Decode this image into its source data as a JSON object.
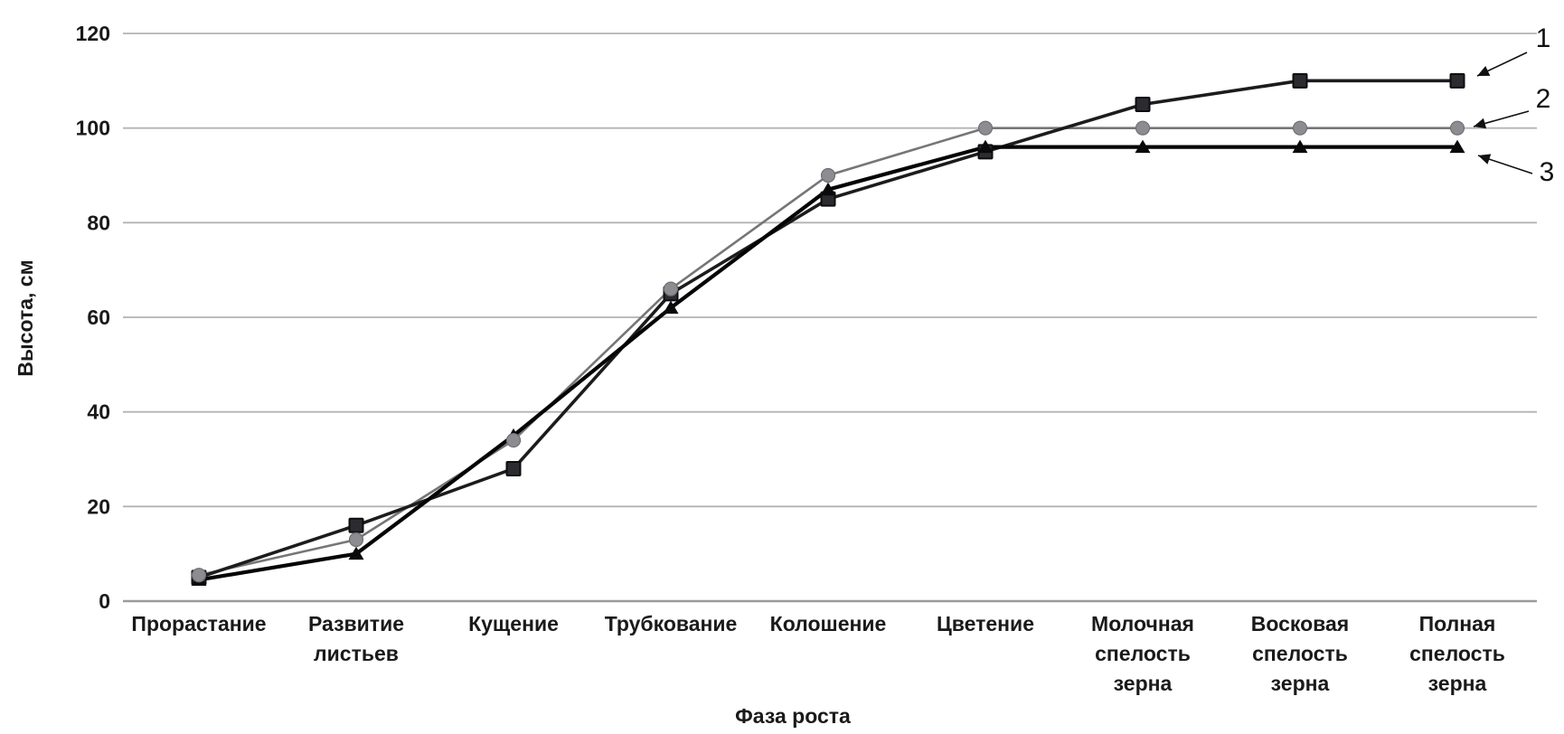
{
  "chart_data": {
    "type": "line",
    "title": "",
    "xlabel": "Фаза роста",
    "ylabel": "Высота, см",
    "ylim": [
      0,
      120
    ],
    "yticks": [
      0,
      20,
      40,
      60,
      80,
      100,
      120
    ],
    "grid": true,
    "legend_position": "arrow annotations at right ends of lines",
    "categories": [
      "Прорастание",
      "Развитие листьев",
      "Кущение",
      "Трубкование",
      "Колошение",
      "Цветение",
      "Молочная спелость зерна",
      "Восковая спелость зерна",
      "Полная спелость зерна"
    ],
    "category_label_lines": [
      [
        "Прорастание"
      ],
      [
        "Развитие",
        "листьев"
      ],
      [
        "Кущение"
      ],
      [
        "Трубкование"
      ],
      [
        "Колошение"
      ],
      [
        "Цветение"
      ],
      [
        "Молочная",
        "спелость",
        "зерна"
      ],
      [
        "Восковая",
        "спелость",
        "зерна"
      ],
      [
        "Полная",
        "спелость",
        "зерна"
      ]
    ],
    "series": [
      {
        "name": "1",
        "marker": "square",
        "line_color": "#1c1c1e",
        "marker_color": "#2b2b30",
        "values": [
          5,
          16,
          28,
          65,
          85,
          95,
          105,
          110,
          110
        ]
      },
      {
        "name": "2",
        "marker": "circle",
        "line_color": "#767676",
        "marker_color": "#8d8d91",
        "values": [
          5.5,
          13,
          34,
          66,
          90,
          100,
          100,
          100,
          100
        ]
      },
      {
        "name": "3",
        "marker": "triangle",
        "line_color": "#050505",
        "marker_color": "#0a0a0a",
        "values": [
          4.5,
          10,
          35,
          62,
          87,
          96,
          96,
          96,
          96
        ]
      }
    ],
    "colors": {
      "gridline": "#b3b3b3",
      "axis_line": "#9b9b9b",
      "text": "#1a1a1a",
      "annotation": "#111111"
    }
  }
}
